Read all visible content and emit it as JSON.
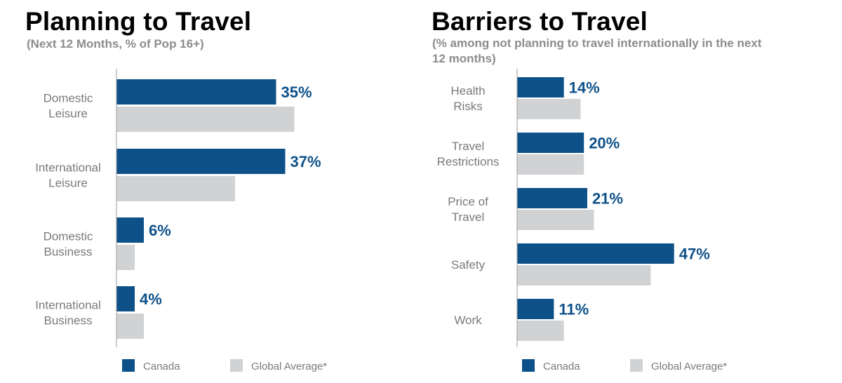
{
  "colors": {
    "canada": "#0e5189",
    "global": "#d1d2d4",
    "axis": "#9a9a9a"
  },
  "chart_data": [
    {
      "type": "bar",
      "orientation": "horizontal",
      "title": "Planning to Travel",
      "subtitle": "(Next 12 Months, % of Pop 16+)",
      "categories": [
        [
          "Domestic",
          "Leisure"
        ],
        [
          "International",
          "Leisure"
        ],
        [
          "Domestic",
          "Business"
        ],
        [
          "International",
          "Business"
        ]
      ],
      "series": [
        {
          "name": "Canada",
          "values": [
            35,
            37,
            6,
            4
          ],
          "data_labels": [
            "35%",
            "37%",
            "6%",
            "4%"
          ]
        },
        {
          "name": "Global Average*",
          "values": [
            39,
            26,
            4,
            6
          ]
        }
      ],
      "xlim": [
        0,
        50
      ],
      "grid": false,
      "legend": "bottom"
    },
    {
      "type": "bar",
      "orientation": "horizontal",
      "title": "Barriers to Travel",
      "subtitle": "(% among not planning to travel internationally in the next 12 months)",
      "categories": [
        [
          "Health",
          "Risks"
        ],
        [
          "Travel",
          "Restrictions"
        ],
        [
          "Price of",
          "Travel"
        ],
        [
          "Safety"
        ],
        [
          "Work"
        ]
      ],
      "series": [
        {
          "name": "Canada",
          "values": [
            14,
            20,
            21,
            47,
            11
          ],
          "data_labels": [
            "14%",
            "20%",
            "21%",
            "47%",
            "11%"
          ]
        },
        {
          "name": "Global Average*",
          "values": [
            19,
            20,
            23,
            40,
            14
          ]
        }
      ],
      "xlim": [
        0,
        50
      ],
      "grid": false,
      "legend": "bottom"
    }
  ]
}
